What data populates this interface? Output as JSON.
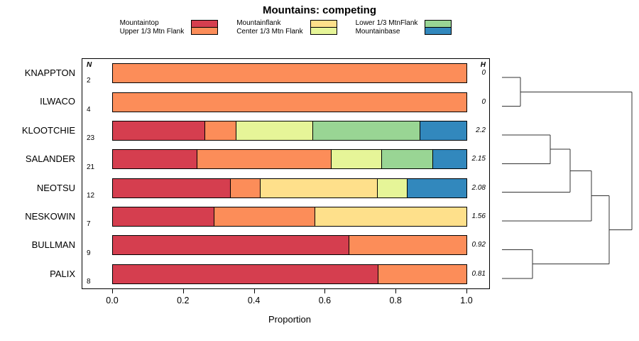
{
  "title": "Mountains: competing",
  "axis": {
    "xlabel": "Proportion"
  },
  "headers": {
    "n": "N",
    "h": "H"
  },
  "chart_data": {
    "type": "bar",
    "stacked": true,
    "orientation": "horizontal",
    "title": "Mountains: competing",
    "xlabel": "Proportion",
    "xlim": [
      0,
      1
    ],
    "xticks": [
      0.0,
      0.2,
      0.4,
      0.6,
      0.8,
      1.0
    ],
    "categories": [
      "Mountaintop",
      "Upper 1/3 Mtn Flank",
      "Mountainflank",
      "Center 1/3 Mtn Flank",
      "Lower 1/3 MtnFlank",
      "Mountainbase"
    ],
    "colors": {
      "Mountaintop": "#D53E4F",
      "Upper 1/3 Mtn Flank": "#FC8D59",
      "Mountainflank": "#FEE08B",
      "Center 1/3 Mtn Flank": "#E6F598",
      "Lower 1/3 MtnFlank": "#99D594",
      "Mountainbase": "#3288BD"
    },
    "legend_groups": [
      [
        "Mountaintop",
        "Upper 1/3 Mtn Flank"
      ],
      [
        "Mountainflank",
        "Center 1/3 Mtn Flank"
      ],
      [
        "Lower 1/3 MtnFlank",
        "Mountainbase"
      ]
    ],
    "rows": [
      {
        "label": "KNAPPTON",
        "n": 2,
        "h": "0",
        "values": {
          "Upper 1/3 Mtn Flank": 1.0
        }
      },
      {
        "label": "ILWACO",
        "n": 4,
        "h": "0",
        "values": {
          "Upper 1/3 Mtn Flank": 1.0
        }
      },
      {
        "label": "KLOOTCHIE",
        "n": 23,
        "h": "2.2",
        "values": {
          "Mountaintop": 0.261,
          "Upper 1/3 Mtn Flank": 0.087,
          "Center 1/3 Mtn Flank": 0.217,
          "Lower 1/3 MtnFlank": 0.304,
          "Mountainbase": 0.13
        }
      },
      {
        "label": "SALANDER",
        "n": 21,
        "h": "2.15",
        "values": {
          "Mountaintop": 0.238,
          "Upper 1/3 Mtn Flank": 0.381,
          "Center 1/3 Mtn Flank": 0.143,
          "Lower 1/3 MtnFlank": 0.143,
          "Mountainbase": 0.095
        }
      },
      {
        "label": "NEOTSU",
        "n": 12,
        "h": "2.08",
        "values": {
          "Mountaintop": 0.333,
          "Upper 1/3 Mtn Flank": 0.083,
          "Mountainflank": 0.333,
          "Center 1/3 Mtn Flank": 0.083,
          "Mountainbase": 0.167
        }
      },
      {
        "label": "NESKOWIN",
        "n": 7,
        "h": "1.56",
        "values": {
          "Mountaintop": 0.286,
          "Upper 1/3 Mtn Flank": 0.286,
          "Mountainflank": 0.429
        }
      },
      {
        "label": "BULLMAN",
        "n": 9,
        "h": "0.92",
        "values": {
          "Mountaintop": 0.667,
          "Upper 1/3 Mtn Flank": 0.333
        }
      },
      {
        "label": "PALIX",
        "n": 8,
        "h": "0.81",
        "values": {
          "Mountaintop": 0.75,
          "Upper 1/3 Mtn Flank": 0.25
        }
      }
    ],
    "dendrogram": {
      "leaf_start_x": 12,
      "merges": [
        {
          "id": "m1",
          "children": [
            "KNAPPTON",
            "ILWACO"
          ],
          "x": 38
        },
        {
          "id": "m2",
          "children": [
            "KLOOTCHIE",
            "SALANDER"
          ],
          "x": 80
        },
        {
          "id": "m3",
          "children": [
            "m2",
            "NEOTSU"
          ],
          "x": 108
        },
        {
          "id": "m4",
          "children": [
            "m3",
            "NESKOWIN"
          ],
          "x": 138
        },
        {
          "id": "m5",
          "children": [
            "BULLMAN",
            "PALIX"
          ],
          "x": 55
        },
        {
          "id": "m6",
          "children": [
            "m4",
            "m5"
          ],
          "x": 163
        },
        {
          "id": "m7",
          "children": [
            "m1",
            "m6"
          ],
          "x": 195
        }
      ]
    }
  }
}
